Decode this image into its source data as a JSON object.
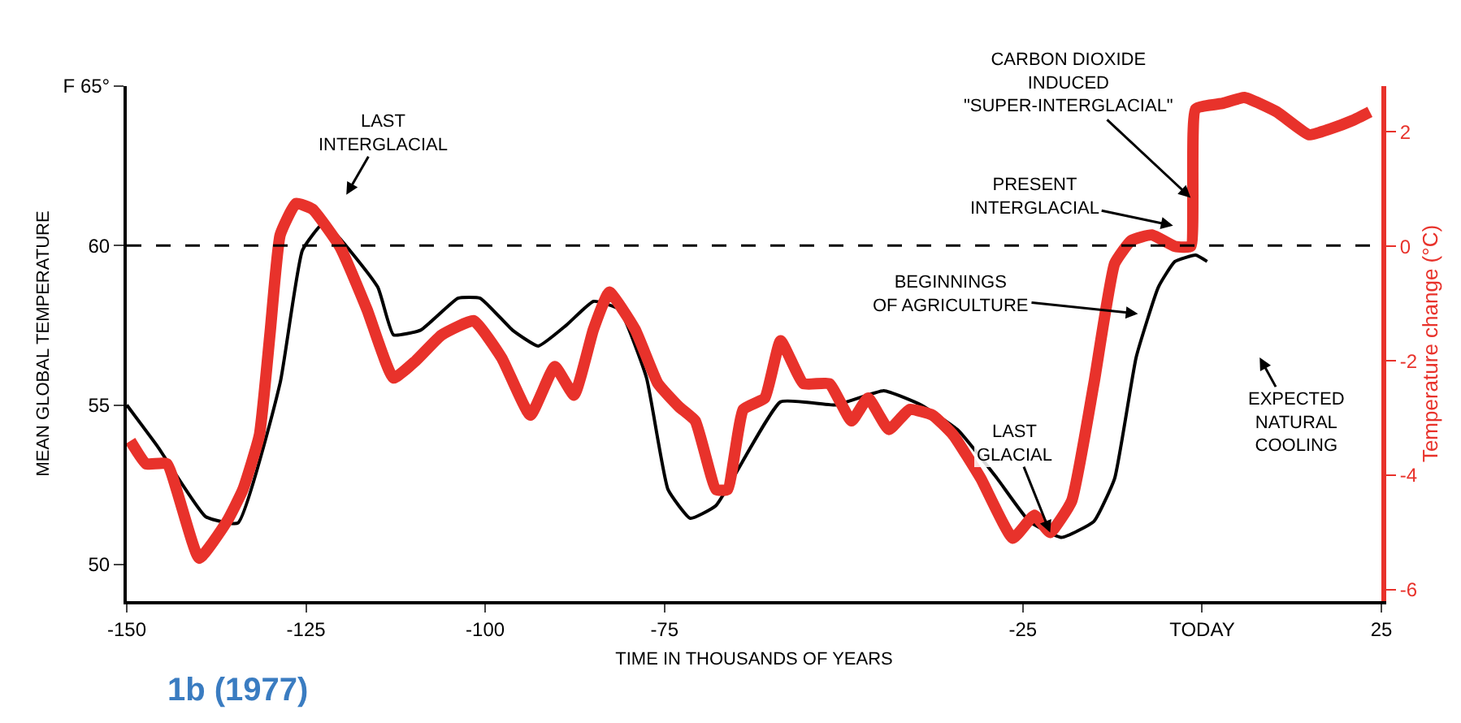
{
  "chart_data": {
    "type": "line",
    "xlabel": "TIME IN THOUSANDS OF YEARS",
    "ylabel": "MEAN GLOBAL TEMPERATURE",
    "y2label": "Temperature change (°C)",
    "xlim": [
      -150,
      25
    ],
    "xticks": [
      -150,
      -125,
      -100,
      -75,
      -25,
      {
        "value": 0,
        "label": "TODAY"
      },
      25
    ],
    "ylim": [
      48.85,
      65
    ],
    "yticks": [
      50,
      55,
      60,
      {
        "value": 65,
        "label": "F 65°"
      }
    ],
    "y2lim": [
      -6.2,
      2.8
    ],
    "y2ticks": [
      -6,
      -4,
      -2,
      0,
      2
    ],
    "line_style": "solid",
    "marker": "none",
    "ref_lines": [
      {
        "axis": "y",
        "value": 60,
        "line_style": "dashed",
        "color": "#000000"
      }
    ],
    "series": [
      {
        "color": "#000000",
        "x": [
          -150,
          -145.7,
          -139,
          -134.5,
          -128.6,
          -125.5,
          -122.5,
          -115,
          -112.8,
          -109,
          -103.8,
          -100.7,
          -96.2,
          -92.6,
          -88.7,
          -84.9,
          -81.3,
          -77.5,
          -74.5,
          -71.4,
          -67.8,
          -58.8,
          -51.1,
          -44.4,
          -39.2,
          -34,
          -28.6,
          -24.1,
          -19.6,
          -15.1,
          -12.2,
          -9.2,
          -6.1,
          -3.8,
          -0.9,
          0.7
        ],
        "values": [
          55,
          53.7,
          51.5,
          51.3,
          55.7,
          59.85,
          60.7,
          58.7,
          57.2,
          57.35,
          58.35,
          58.35,
          57.35,
          56.85,
          57.5,
          58.25,
          58,
          55.85,
          52.35,
          51.45,
          51.85,
          55.1,
          55,
          55.45,
          55,
          54.2,
          52.7,
          51.35,
          50.85,
          51.35,
          52.7,
          56.5,
          58.7,
          59.5,
          59.7,
          59.5
        ]
      },
      {
        "color": "#e8322b",
        "axis": "y2",
        "x": [
          -149.5,
          -147.3,
          -144.4,
          -139.9,
          -136,
          -133.8,
          -131.5,
          -130,
          -128.6,
          -126.4,
          -124.1,
          -120.3,
          -116.5,
          -112.8,
          -109.7,
          -106.1,
          -101.6,
          -97.7,
          -93.7,
          -90.3,
          -87.6,
          -84.9,
          -82.7,
          -79.1,
          -75.9,
          -73,
          -70.7,
          -67.8,
          -66.2,
          -64,
          -61,
          -58.8,
          -55.6,
          -52,
          -48.9,
          -46.6,
          -43.7,
          -40.8,
          -37.6,
          -34.7,
          -30.9,
          -26.4,
          -23.4,
          -21.2,
          -18.2,
          -15.1,
          -12.2,
          -9.9,
          -7,
          -3.8,
          -1.6,
          -0.9,
          2.9,
          5.9,
          10.4,
          14.9,
          17.8,
          21,
          23.4
        ],
        "values": [
          -3.4,
          -3.8,
          -3.8,
          -5.45,
          -4.8,
          -4.25,
          -3.3,
          -1.5,
          0.2,
          0.75,
          0.65,
          0,
          -1.1,
          -2.3,
          -2,
          -1.55,
          -1.3,
          -1.95,
          -2.95,
          -2.1,
          -2.6,
          -1.45,
          -0.8,
          -1.45,
          -2.4,
          -2.8,
          -3.05,
          -4.25,
          -4.25,
          -2.85,
          -2.65,
          -1.65,
          -2.4,
          -2.4,
          -3.05,
          -2.65,
          -3.2,
          -2.85,
          -2.95,
          -3.3,
          -4.05,
          -5.1,
          -4.7,
          -5,
          -4.45,
          -2.4,
          -0.3,
          0.1,
          0.2,
          0,
          0,
          2.4,
          2.5,
          2.6,
          2.35,
          1.95,
          2.05,
          2.2,
          2.35
        ]
      }
    ],
    "annotations": [
      "LAST\nINTERGLACIAL",
      {
        "text": "CARBON DIOXIDE\nINDUCED\n\"SUPER-INTERGLACIAL\"",
        "x": -1.6,
        "y": 61.5
      },
      "PRESENT\nINTERGLACIAL",
      "BEGINNINGS\nOF AGRICULTURE",
      {
        "text": "LAST\nGLACIAL",
        "x": -21.2,
        "y": 51
      },
      "EXPECTED\nNATURAL\nCOOLING",
      "1b (1977)"
    ]
  }
}
